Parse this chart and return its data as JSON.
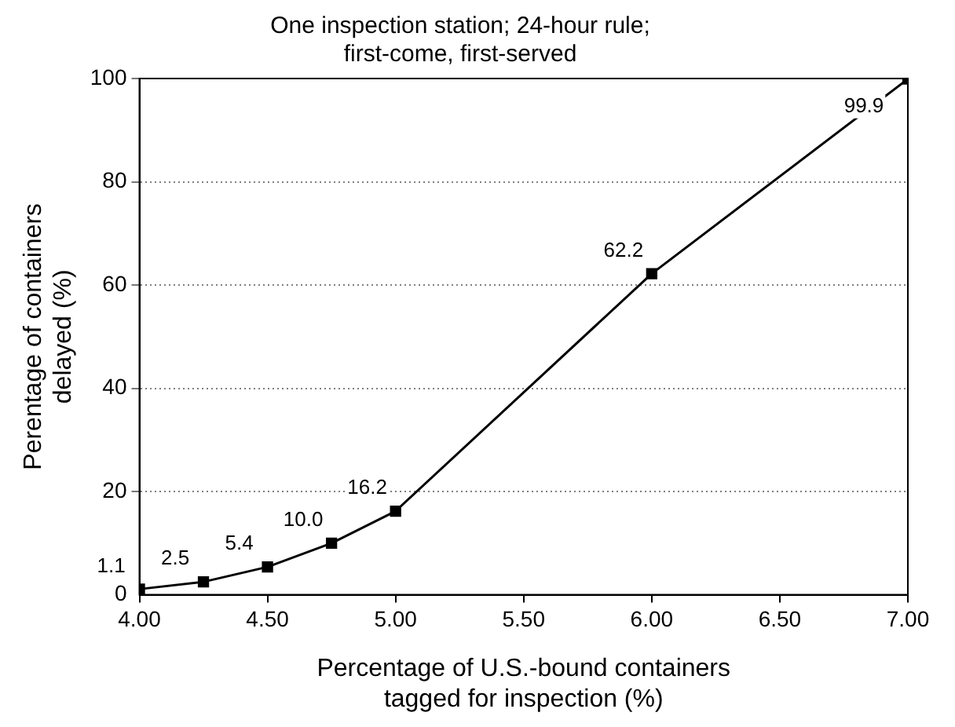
{
  "chart_data": {
    "type": "line",
    "title": "One inspection station; 24-hour rule; first-come, first-served",
    "xlabel": "Percentage of U.S.-bound containers tagged for inspection (%)",
    "ylabel": "Perentage of containers delayed (%)",
    "x": [
      4.0,
      4.25,
      4.5,
      4.75,
      5.0,
      6.0,
      7.0
    ],
    "series": [
      {
        "color": "#000000",
        "values": [
          1.1,
          2.5,
          5.4,
          10.0,
          16.2,
          62.2,
          99.9
        ],
        "value_labels": [
          "1.1",
          "2.5",
          "5.4",
          "10.0",
          "16.2",
          "62.2",
          "99.9"
        ]
      }
    ],
    "xlim": [
      4.0,
      7.0
    ],
    "xticks": [
      {
        "value": 4.0,
        "label": "4.00"
      },
      {
        "value": 4.5,
        "label": "4.50"
      },
      {
        "value": 5.0,
        "label": "5.00"
      },
      {
        "value": 5.5,
        "label": "5.50"
      },
      {
        "value": 6.0,
        "label": "6.00"
      },
      {
        "value": 6.5,
        "label": "6.50"
      },
      {
        "value": 7.0,
        "label": "7.00"
      }
    ],
    "ylim": [
      0,
      100
    ],
    "yticks": [
      0,
      20,
      40,
      60,
      80,
      100
    ],
    "grid": "y",
    "marker": "square",
    "line_style": "solid",
    "legend": false
  }
}
